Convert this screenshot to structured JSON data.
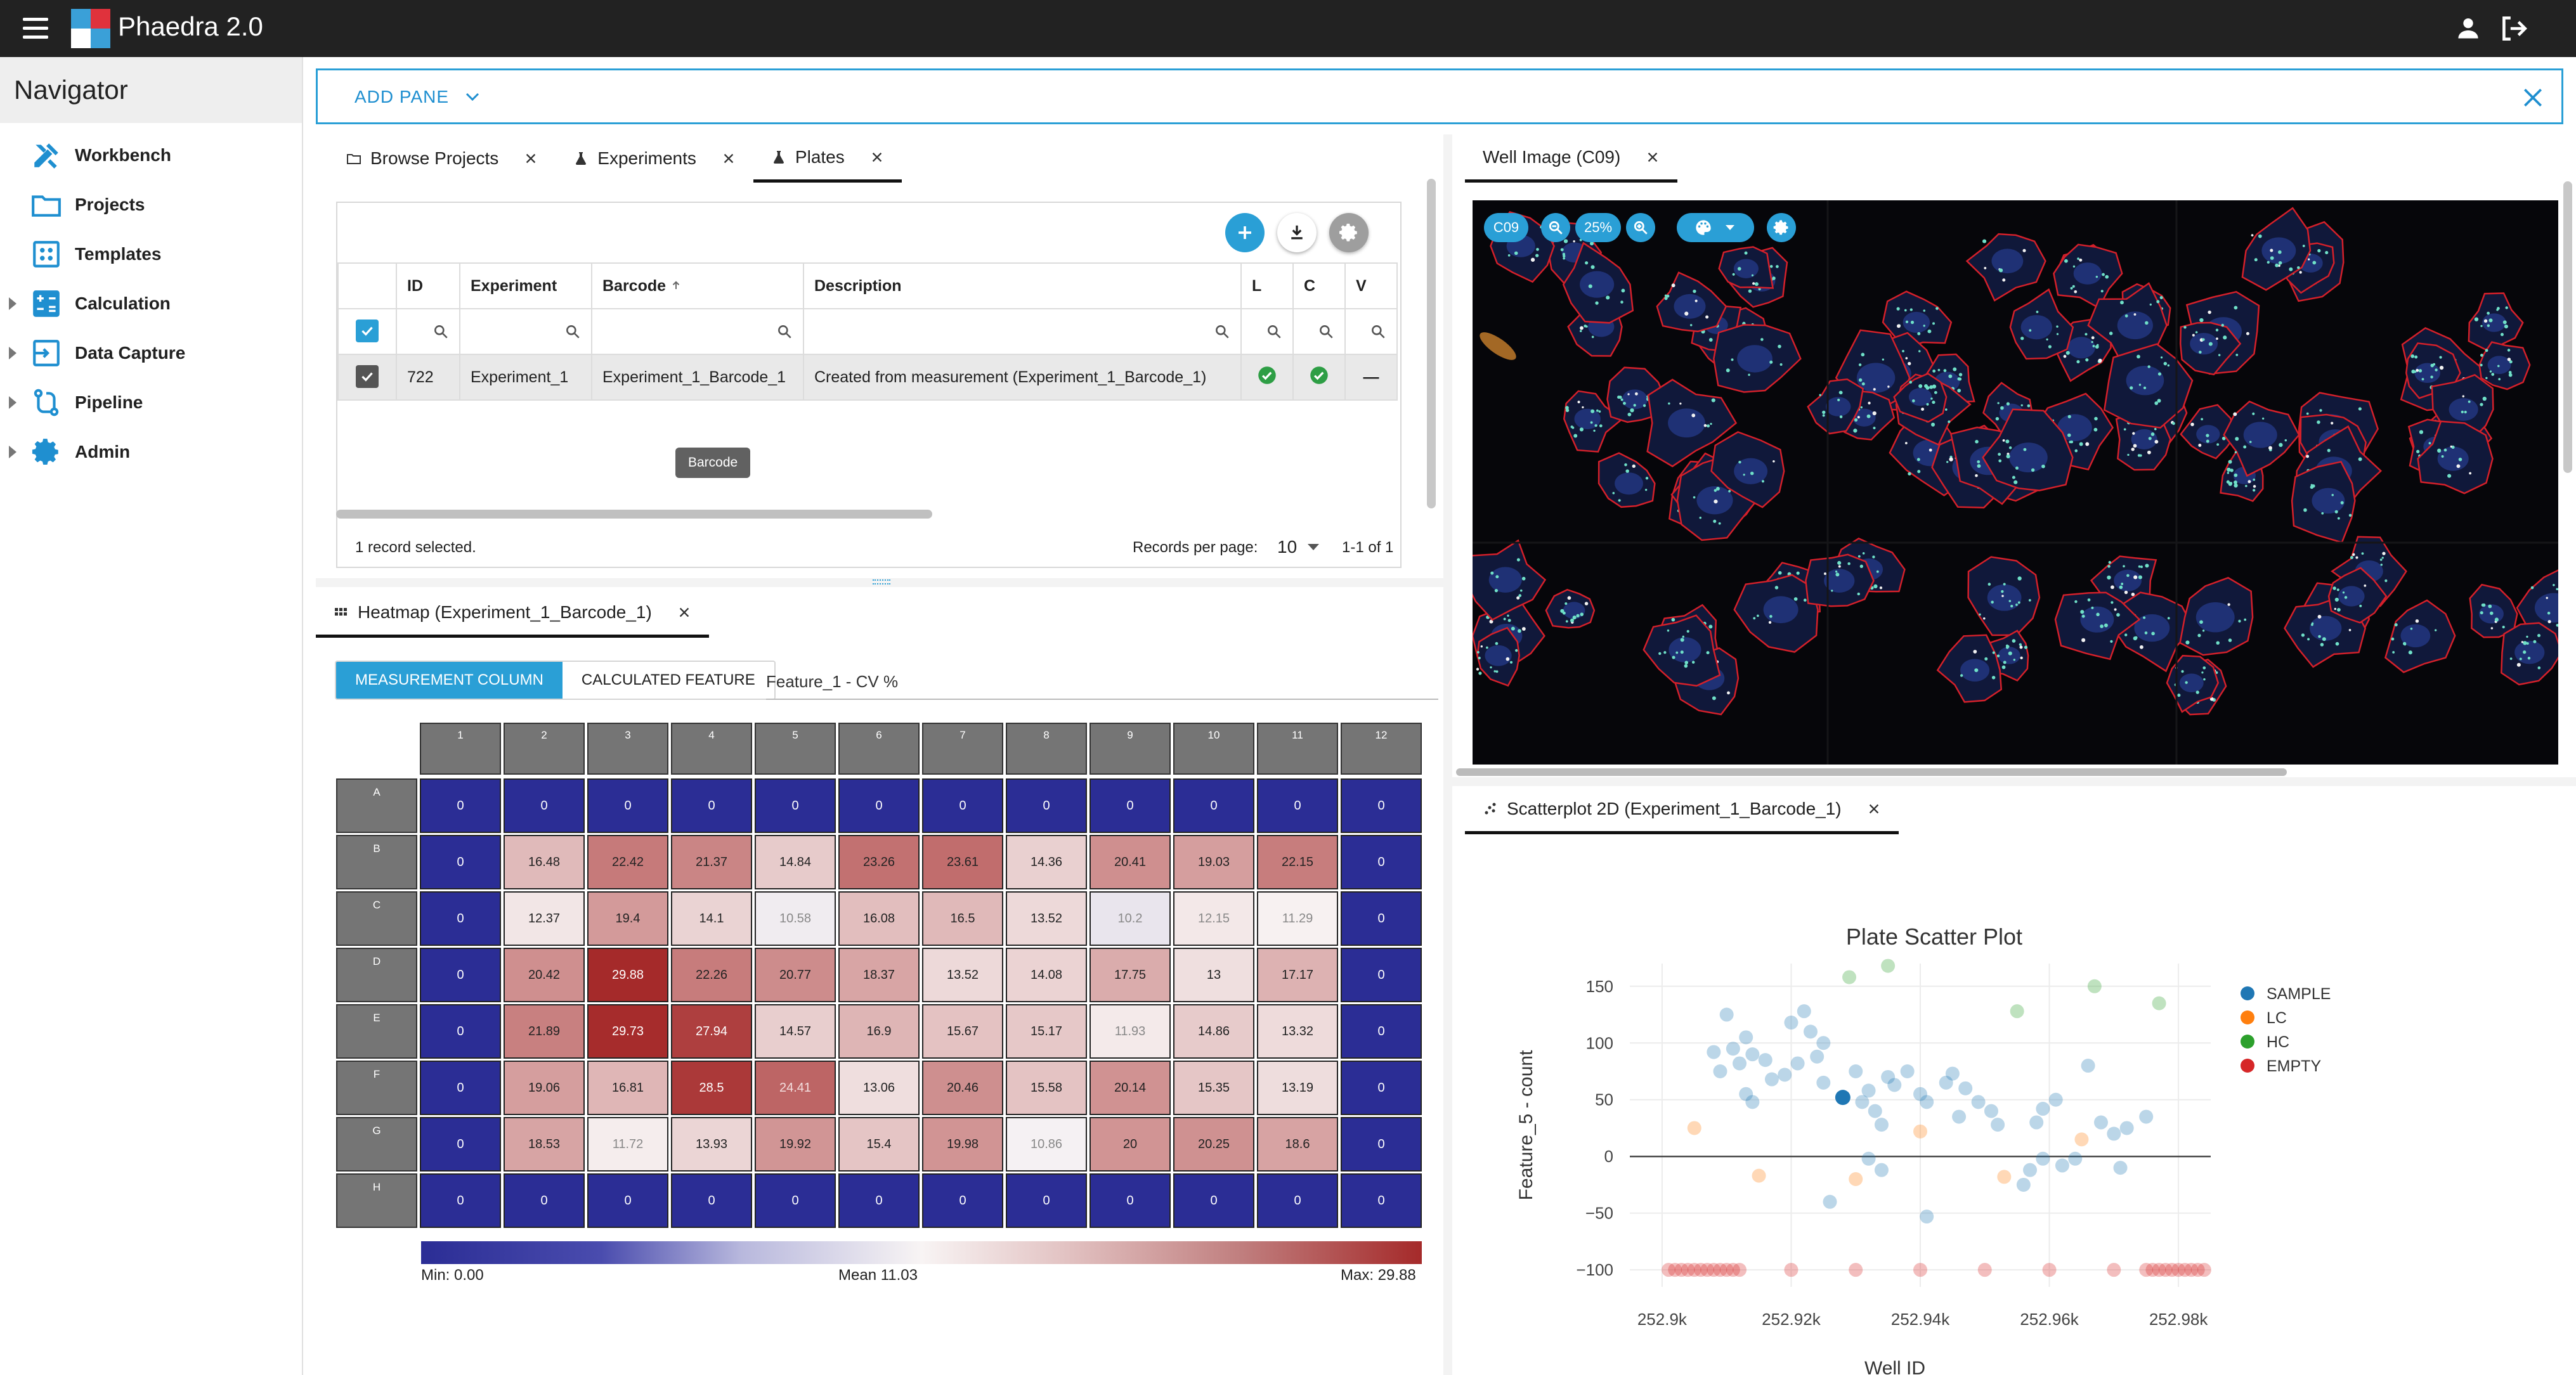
{
  "app": {
    "title": "Phaedra 2.0"
  },
  "navigator": {
    "title": "Navigator",
    "items": [
      {
        "label": "Workbench"
      },
      {
        "label": "Projects"
      },
      {
        "label": "Templates"
      },
      {
        "label": "Calculation"
      },
      {
        "label": "Data Capture"
      },
      {
        "label": "Pipeline"
      },
      {
        "label": "Admin"
      }
    ]
  },
  "toolbar": {
    "add_pane_label": "ADD PANE"
  },
  "plates_pane": {
    "tabs": [
      {
        "label": "Browse Projects"
      },
      {
        "label": "Experiments"
      },
      {
        "label": "Plates"
      }
    ],
    "columns": [
      "ID",
      "Experiment",
      "Barcode",
      "Description",
      "L",
      "C",
      "V"
    ],
    "rows": [
      {
        "id": "722",
        "experiment": "Experiment_1",
        "barcode": "Experiment_1_Barcode_1",
        "description": "Created from measurement (Experiment_1_Barcode_1)",
        "v": "—"
      }
    ],
    "tooltip": "Barcode",
    "footer": {
      "selected": "1 record selected.",
      "rpp_label": "Records per page:",
      "rpp_value": "10",
      "range": "1-1 of 1"
    }
  },
  "heatmap_pane": {
    "tab": "Heatmap (Experiment_1_Barcode_1)",
    "mode_active": "MEASUREMENT COLUMN",
    "mode_other": "CALCULATED FEATURE",
    "feature": "Feature_1 - CV %",
    "col_headers": [
      "1",
      "2",
      "3",
      "4",
      "5",
      "6",
      "7",
      "8",
      "9",
      "10",
      "11",
      "12"
    ],
    "row_headers": [
      "A",
      "B",
      "C",
      "D",
      "E",
      "F",
      "G",
      "H"
    ],
    "values": [
      [
        "0",
        "0",
        "0",
        "0",
        "0",
        "0",
        "0",
        "0",
        "0",
        "0",
        "0",
        "0"
      ],
      [
        "0",
        "16.48",
        "22.42",
        "21.37",
        "14.84",
        "23.26",
        "23.61",
        "14.36",
        "20.41",
        "19.03",
        "22.15",
        "0"
      ],
      [
        "0",
        "12.37",
        "19.4",
        "14.1",
        "10.58",
        "16.08",
        "16.5",
        "13.52",
        "10.2",
        "12.15",
        "11.29",
        "0"
      ],
      [
        "0",
        "20.42",
        "29.88",
        "22.26",
        "20.77",
        "18.37",
        "13.52",
        "14.08",
        "17.75",
        "13",
        "17.17",
        "0"
      ],
      [
        "0",
        "21.89",
        "29.73",
        "27.94",
        "14.57",
        "16.9",
        "15.67",
        "15.17",
        "11.93",
        "14.86",
        "13.32",
        "0"
      ],
      [
        "0",
        "19.06",
        "16.81",
        "28.5",
        "24.41",
        "13.06",
        "20.46",
        "15.58",
        "20.14",
        "15.35",
        "13.19",
        "0"
      ],
      [
        "0",
        "18.53",
        "11.72",
        "13.93",
        "19.92",
        "15.4",
        "19.98",
        "10.86",
        "20",
        "20.25",
        "18.6",
        "0"
      ],
      [
        "0",
        "0",
        "0",
        "0",
        "0",
        "0",
        "0",
        "0",
        "0",
        "0",
        "0",
        "0"
      ]
    ],
    "legend": {
      "min": "Min: 0.00",
      "mean": "Mean 11.03",
      "max": "Max: 29.88"
    },
    "colors": {
      "low": "#2b2d95",
      "mid": "#f8f4f4",
      "high": "#a52a2a"
    }
  },
  "well_pane": {
    "tab": "Well Image (C09)",
    "well_chip": "C09",
    "zoom": "25%"
  },
  "scatter_pane": {
    "tab": "Scatterplot 2D (Experiment_1_Barcode_1)",
    "chart_data": {
      "type": "scatter",
      "title": "Plate Scatter Plot",
      "xlabel": "Well ID",
      "ylabel": "Feature_5 - count",
      "xlim": [
        252895,
        252985
      ],
      "ylim": [
        -115,
        170
      ],
      "x_ticks": [
        "252.9k",
        "252.92k",
        "252.94k",
        "252.96k",
        "252.98k"
      ],
      "x_tick_values": [
        252900,
        252920,
        252940,
        252960,
        252980
      ],
      "y_ticks": [
        "150",
        "100",
        "50",
        "0",
        "−50",
        "−100"
      ],
      "y_tick_values": [
        150,
        100,
        50,
        0,
        -50,
        -100
      ],
      "legend": [
        "SAMPLE",
        "LC",
        "HC",
        "EMPTY"
      ],
      "colors": {
        "SAMPLE": "#1f77b4",
        "LC": "#ff7f0e",
        "HC": "#2ca02c",
        "EMPTY": "#d62728"
      },
      "series": [
        {
          "name": "SAMPLE",
          "points": [
            [
              252910,
              125
            ],
            [
              252913,
              105
            ],
            [
              252908,
              92
            ],
            [
              252911,
              95
            ],
            [
              252914,
              90
            ],
            [
              252909,
              75
            ],
            [
              252912,
              82
            ],
            [
              252916,
              85
            ],
            [
              252917,
              68
            ],
            [
              252913,
              55
            ],
            [
              252914,
              48
            ],
            [
              252920,
              118
            ],
            [
              252922,
              128
            ],
            [
              252923,
              110
            ],
            [
              252925,
              100
            ],
            [
              252924,
              88
            ],
            [
              252921,
              82
            ],
            [
              252919,
              72
            ],
            [
              252925,
              65
            ],
            [
              252930,
              75
            ],
            [
              252932,
              58
            ],
            [
              252931,
              48
            ],
            [
              252933,
              40
            ],
            [
              252935,
              70
            ],
            [
              252936,
              63
            ],
            [
              252934,
              28
            ],
            [
              252938,
              75
            ],
            [
              252940,
              55
            ],
            [
              252941,
              48
            ],
            [
              252944,
              65
            ],
            [
              252945,
              73
            ],
            [
              252947,
              60
            ],
            [
              252949,
              48
            ],
            [
              252951,
              40
            ],
            [
              252952,
              28
            ],
            [
              252946,
              35
            ],
            [
              252958,
              30
            ],
            [
              252959,
              42
            ],
            [
              252961,
              50
            ],
            [
              252956,
              -25
            ],
            [
              252957,
              -12
            ],
            [
              252959,
              -2
            ],
            [
              252962,
              -8
            ],
            [
              252964,
              -2
            ],
            [
              252966,
              80
            ],
            [
              252968,
              30
            ],
            [
              252970,
              20
            ],
            [
              252972,
              25
            ],
            [
              252971,
              -10
            ],
            [
              252975,
              35
            ],
            [
              252932,
              -2
            ],
            [
              252926,
              -40
            ],
            [
              252934,
              -12
            ],
            [
              252941,
              -53
            ]
          ]
        },
        {
          "name": "SAMPLE_highlight",
          "points": [
            [
              252928,
              52
            ]
          ]
        },
        {
          "name": "LC",
          "points": [
            [
              252905,
              25
            ],
            [
              252915,
              -17
            ],
            [
              252930,
              -20
            ],
            [
              252940,
              22
            ],
            [
              252953,
              -18
            ],
            [
              252965,
              15
            ]
          ]
        },
        {
          "name": "HC",
          "points": [
            [
              252929,
              158
            ],
            [
              252935,
              168
            ],
            [
              252955,
              128
            ],
            [
              252967,
              150
            ],
            [
              252977,
              135
            ]
          ]
        },
        {
          "name": "EMPTY",
          "points": [
            [
              252901,
              -100
            ],
            [
              252902,
              -100
            ],
            [
              252903,
              -100
            ],
            [
              252904,
              -100
            ],
            [
              252905,
              -100
            ],
            [
              252906,
              -100
            ],
            [
              252907,
              -100
            ],
            [
              252908,
              -100
            ],
            [
              252909,
              -100
            ],
            [
              252910,
              -100
            ],
            [
              252911,
              -100
            ],
            [
              252912,
              -100
            ],
            [
              252920,
              -100
            ],
            [
              252930,
              -100
            ],
            [
              252940,
              -100
            ],
            [
              252950,
              -100
            ],
            [
              252960,
              -100
            ],
            [
              252970,
              -100
            ],
            [
              252975,
              -100
            ],
            [
              252976,
              -100
            ],
            [
              252977,
              -100
            ],
            [
              252978,
              -100
            ],
            [
              252979,
              -100
            ],
            [
              252980,
              -100
            ],
            [
              252981,
              -100
            ],
            [
              252982,
              -100
            ],
            [
              252983,
              -100
            ],
            [
              252984,
              -100
            ]
          ]
        }
      ]
    }
  }
}
